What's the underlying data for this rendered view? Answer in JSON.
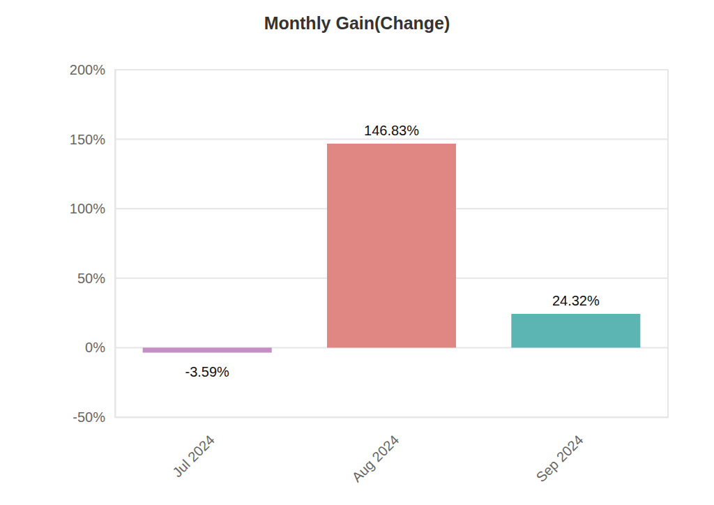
{
  "chart_data": {
    "type": "bar",
    "title": "Monthly Gain(Change)",
    "categories": [
      "Jul 2024",
      "Aug 2024",
      "Sep 2024"
    ],
    "values": [
      -3.59,
      146.83,
      24.32
    ],
    "value_labels": [
      "-3.59%",
      "146.83%",
      "24.32%"
    ],
    "colors": [
      "#c48ec6",
      "#e08683",
      "#5cb5b3"
    ],
    "ylim": [
      -50,
      200
    ],
    "yticks": [
      {
        "value": -50,
        "label": "-50%"
      },
      {
        "value": 0,
        "label": "0%"
      },
      {
        "value": 50,
        "label": "50%"
      },
      {
        "value": 100,
        "label": "100%"
      },
      {
        "value": 150,
        "label": "150%"
      },
      {
        "value": 200,
        "label": "200%"
      }
    ],
    "grid": true,
    "data_labels": true
  }
}
